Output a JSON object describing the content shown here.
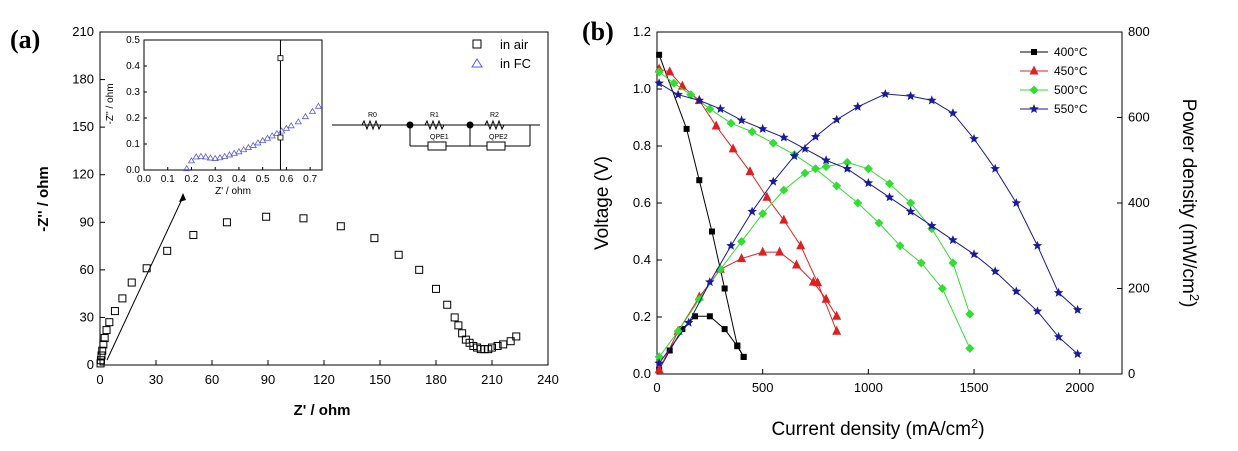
{
  "panels": {
    "a_label": "(a)",
    "b_label": "(b)"
  },
  "chart_data": [
    {
      "type": "scatter",
      "panel": "(a)",
      "xlabel": "Z' / ohm",
      "ylabel": "-Z'' / ohm",
      "xlim": [
        0,
        240
      ],
      "ylim": [
        0,
        210
      ],
      "xticks": [
        "0",
        "30",
        "60",
        "90",
        "120",
        "150",
        "180",
        "210",
        "240"
      ],
      "yticks": [
        "0",
        "30",
        "60",
        "90",
        "120",
        "150",
        "180",
        "210"
      ],
      "legend_position": "top-right",
      "series": [
        {
          "name": "in air",
          "marker": "open-square",
          "color": "#000000",
          "x": [
            0.3,
            0.5,
            0.8,
            1.2,
            1.8,
            2.5,
            3.5,
            5,
            8,
            12,
            17,
            25,
            36,
            50,
            68,
            89,
            109,
            129,
            147,
            160,
            171,
            180,
            186,
            190,
            192,
            194,
            196,
            198,
            200,
            202,
            204,
            206,
            208,
            210,
            213,
            216,
            220,
            223
          ],
          "y": [
            1,
            3,
            6,
            9,
            13,
            17,
            22,
            27,
            34,
            42,
            52,
            61,
            72,
            82,
            90,
            93.5,
            92.5,
            87.5,
            80,
            69.5,
            60,
            48,
            38,
            30,
            25,
            20,
            16,
            14,
            12,
            11,
            10,
            10,
            10,
            11,
            12,
            13,
            15,
            18
          ]
        }
      ],
      "inset": {
        "xlabel": "Z' / ohm",
        "ylabel": "-Z'' / ohm",
        "xlim": [
          0,
          0.75
        ],
        "ylim": [
          0,
          0.5
        ],
        "xticks": [
          "0.0",
          "0.1",
          "0.2",
          "0.3",
          "0.4",
          "0.5",
          "0.6",
          "0.7"
        ],
        "yticks": [
          "0.0",
          "0.1",
          "0.2",
          "0.3",
          "0.4",
          "0.5"
        ],
        "vertical_line_x": 0.575,
        "series": [
          {
            "name": "in FC",
            "marker": "open-triangle",
            "color": "#5b5bdc",
            "x": [
              0.18,
              0.2,
              0.22,
              0.24,
              0.26,
              0.28,
              0.3,
              0.32,
              0.34,
              0.36,
              0.38,
              0.4,
              0.42,
              0.44,
              0.46,
              0.48,
              0.5,
              0.52,
              0.54,
              0.56,
              0.58,
              0.6,
              0.62,
              0.65,
              0.68,
              0.71,
              0.735
            ],
            "y": [
              0.005,
              0.035,
              0.05,
              0.052,
              0.05,
              0.046,
              0.044,
              0.047,
              0.052,
              0.058,
              0.064,
              0.07,
              0.078,
              0.086,
              0.094,
              0.104,
              0.113,
              0.122,
              0.131,
              0.14,
              0.15,
              0.16,
              0.17,
              0.185,
              0.205,
              0.225,
              0.245
            ]
          },
          {
            "name": "in air",
            "marker": "open-square",
            "color": "#000000",
            "x": [
              0.575,
              0.575
            ],
            "y": [
              0.43,
              0.125
            ]
          }
        ]
      },
      "circuit": {
        "elements": [
          "R0",
          "R1",
          "QPE1",
          "R2",
          "QPE2"
        ]
      }
    },
    {
      "type": "line",
      "panel": "(b)",
      "xlabel": "Current density (mA/cm",
      "xlabel_sup": "2",
      "xlabel_end": ")",
      "ylabel": "Voltage (V)",
      "y2label": "Power density (mW/cm",
      "y2label_sup": "2",
      "y2label_end": ")",
      "xlim": [
        0,
        2200
      ],
      "ylim": [
        0,
        1.2
      ],
      "y2lim": [
        0,
        800
      ],
      "xticks": [
        "0",
        "500",
        "1000",
        "1500",
        "2000"
      ],
      "xtick_values": [
        0,
        500,
        1000,
        1500,
        2000
      ],
      "yticks": [
        "0.0",
        "0.2",
        "0.4",
        "0.6",
        "0.8",
        "1.0",
        "1.2"
      ],
      "y2ticks": [
        "0",
        "200",
        "400",
        "600",
        "800"
      ],
      "legend_position": "top-right",
      "series": [
        {
          "name": "400°C",
          "color": "#000000",
          "marker": "square",
          "voltage": {
            "x": [
              10,
              140,
              200,
              260,
              320,
              380,
              410
            ],
            "y": [
              1.12,
              0.86,
              0.68,
              0.5,
              0.3,
              0.1,
              0.06
            ]
          },
          "power": {
            "x": [
              10,
              60,
              120,
              180,
              250,
              320,
              380,
              410
            ],
            "y": [
              10,
              55,
              105,
              135,
              135,
              105,
              65,
              40
            ]
          }
        },
        {
          "name": "450°C",
          "color": "#e02020",
          "marker": "triangle",
          "voltage": {
            "x": [
              10,
              60,
              120,
              200,
              280,
              360,
              440,
              520,
              600,
              680,
              760,
              850
            ],
            "y": [
              1.07,
              1.06,
              1.01,
              0.96,
              0.87,
              0.79,
              0.71,
              0.62,
              0.54,
              0.45,
              0.32,
              0.15
            ]
          },
          "power": {
            "x": [
              10,
              100,
              200,
              300,
              400,
              500,
              580,
              660,
              740,
              800,
              850
            ],
            "y": [
              10,
              100,
              180,
              245,
              270,
              285,
              285,
              255,
              215,
              175,
              135
            ]
          }
        },
        {
          "name": "500°C",
          "color": "#33dd33",
          "marker": "diamond",
          "voltage": {
            "x": [
              10,
              80,
              160,
              250,
              350,
              450,
              550,
              650,
              750,
              850,
              950,
              1050,
              1150,
              1250,
              1350,
              1480
            ],
            "y": [
              1.06,
              1.02,
              0.98,
              0.93,
              0.88,
              0.85,
              0.81,
              0.77,
              0.72,
              0.66,
              0.6,
              0.53,
              0.45,
              0.39,
              0.3,
              0.09
            ]
          },
          "power": {
            "x": [
              10,
              100,
              200,
              300,
              400,
              500,
              600,
              700,
              800,
              900,
              1000,
              1100,
              1200,
              1300,
              1400,
              1480
            ],
            "y": [
              40,
              100,
              175,
              245,
              310,
              375,
              430,
              470,
              485,
              495,
              480,
              445,
              400,
              340,
              260,
              140
            ]
          }
        },
        {
          "name": "550°C",
          "color": "#1a1a9a",
          "marker": "star",
          "voltage": {
            "x": [
              10,
              100,
              200,
              300,
              400,
              500,
              600,
              700,
              800,
              900,
              1000,
              1100,
              1200,
              1300,
              1400,
              1500,
              1600,
              1700,
              1800,
              1900,
              1990
            ],
            "y": [
              1.02,
              0.98,
              0.96,
              0.93,
              0.89,
              0.86,
              0.83,
              0.79,
              0.75,
              0.72,
              0.67,
              0.62,
              0.57,
              0.52,
              0.47,
              0.42,
              0.36,
              0.29,
              0.22,
              0.13,
              0.07
            ]
          },
          "power": {
            "x": [
              10,
              150,
              250,
              350,
              450,
              550,
              650,
              750,
              850,
              950,
              1080,
              1200,
              1300,
              1400,
              1500,
              1600,
              1700,
              1800,
              1900,
              1990
            ],
            "y": [
              25,
              120,
              215,
              300,
              380,
              450,
              510,
              555,
              595,
              625,
              655,
              650,
              640,
              610,
              550,
              480,
              400,
              300,
              190,
              150
            ]
          }
        }
      ]
    }
  ]
}
